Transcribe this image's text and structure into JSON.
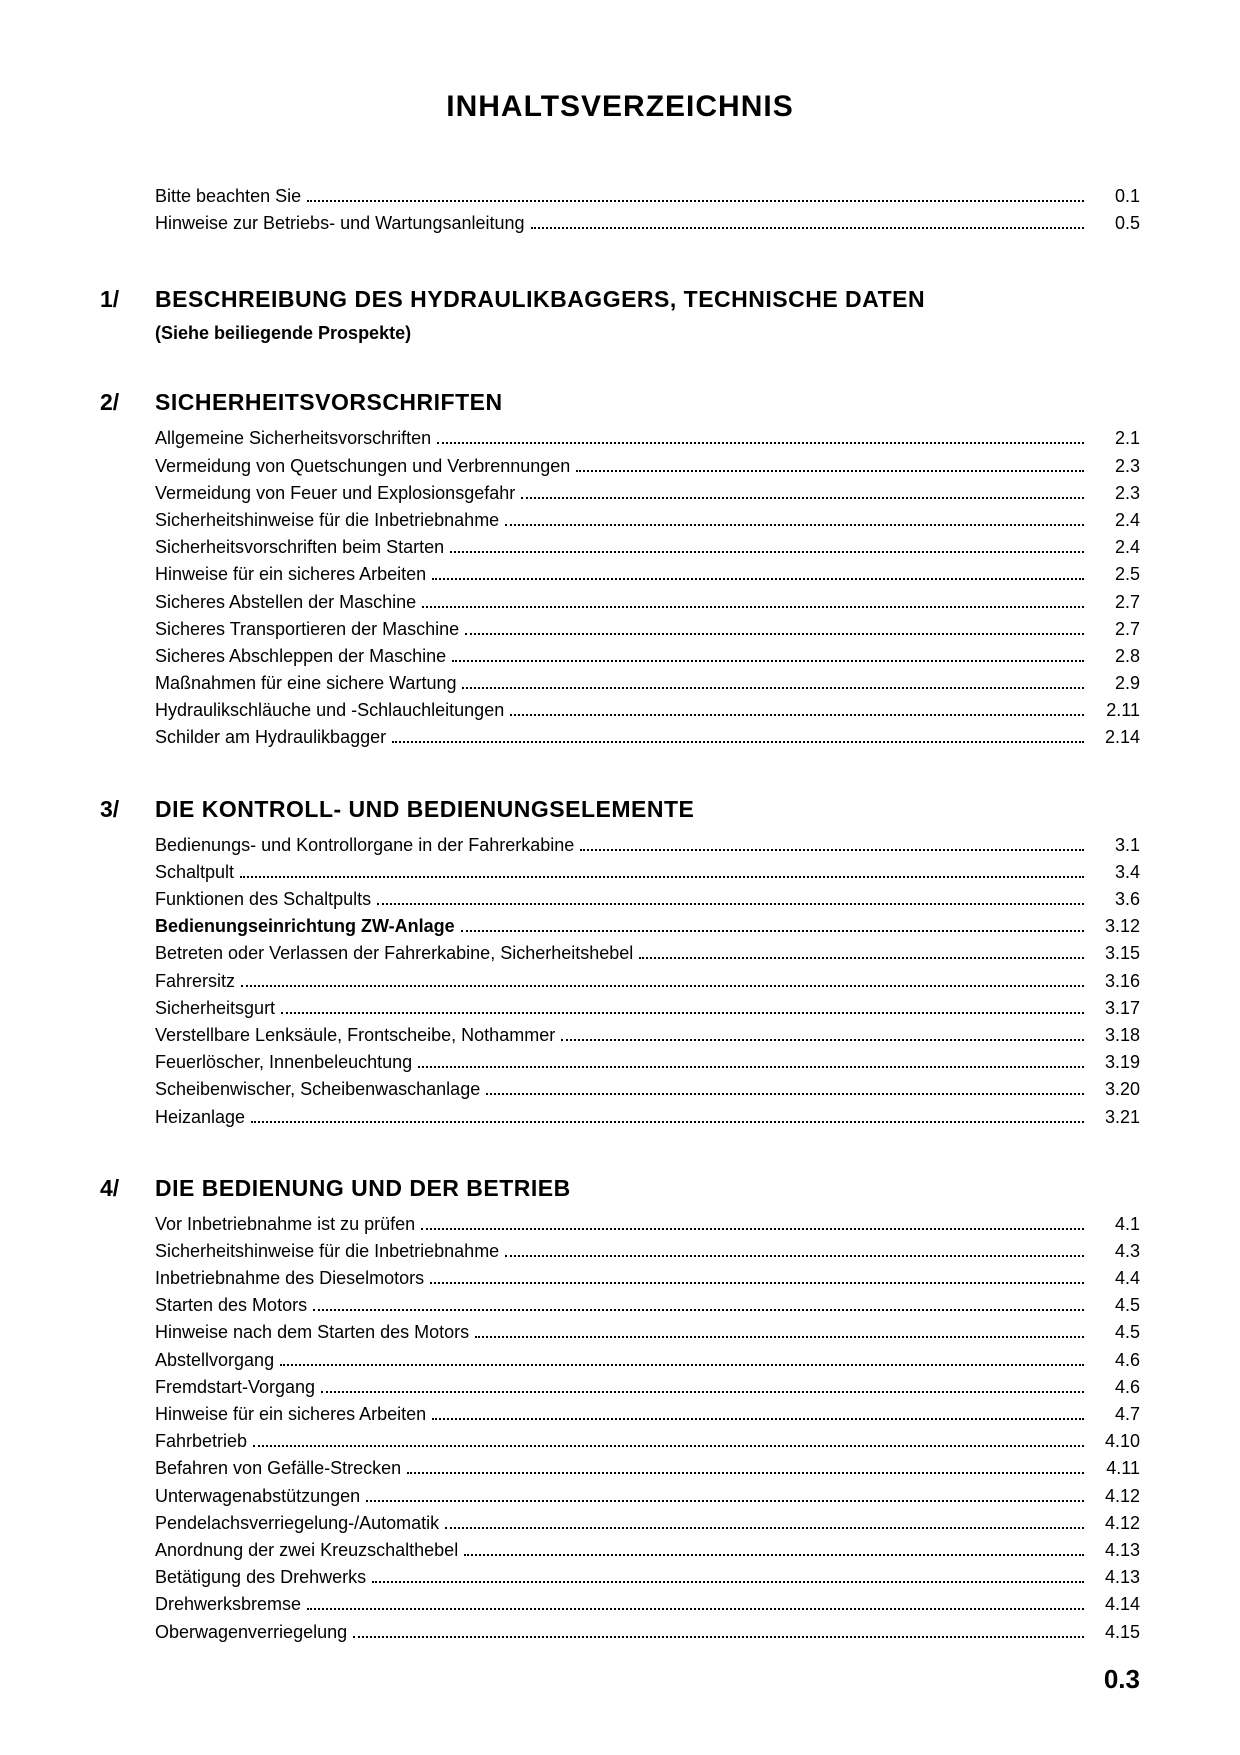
{
  "title": "INHALTSVERZEICHNIS",
  "introEntries": [
    {
      "label": "Bitte beachten Sie",
      "page": "0.1",
      "bold": false
    },
    {
      "label": "Hinweise zur Betriebs- und Wartungsanleitung",
      "page": "0.5",
      "bold": false
    }
  ],
  "sections": [
    {
      "number": "1/",
      "title": "BESCHREIBUNG DES HYDRAULIKBAGGERS, TECHNISCHE DATEN",
      "subtitle": "(Siehe beiliegende Prospekte)",
      "entries": []
    },
    {
      "number": "2/",
      "title": "SICHERHEITSVORSCHRIFTEN",
      "subtitle": "",
      "entries": [
        {
          "label": "Allgemeine Sicherheitsvorschriften",
          "page": "2.1",
          "bold": false
        },
        {
          "label": "Vermeidung von Quetschungen und Verbrennungen",
          "page": "2.3",
          "bold": false
        },
        {
          "label": "Vermeidung von Feuer und Explosionsgefahr",
          "page": "2.3",
          "bold": false
        },
        {
          "label": "Sicherheitshinweise für die Inbetriebnahme",
          "page": "2.4",
          "bold": false
        },
        {
          "label": "Sicherheitsvorschriften beim Starten",
          "page": "2.4",
          "bold": false
        },
        {
          "label": "Hinweise für ein sicheres Arbeiten",
          "page": "2.5",
          "bold": false
        },
        {
          "label": "Sicheres Abstellen der Maschine",
          "page": "2.7",
          "bold": false
        },
        {
          "label": "Sicheres Transportieren der Maschine",
          "page": "2.7",
          "bold": false
        },
        {
          "label": "Sicheres Abschleppen der Maschine",
          "page": "2.8",
          "bold": false
        },
        {
          "label": "Maßnahmen für eine sichere Wartung",
          "page": "2.9",
          "bold": false
        },
        {
          "label": "Hydraulikschläuche und -Schlauchleitungen",
          "page": "2.11",
          "bold": false
        },
        {
          "label": "Schilder am Hydraulikbagger",
          "page": "2.14",
          "bold": false
        }
      ]
    },
    {
      "number": "3/",
      "title": "DIE KONTROLL- UND BEDIENUNGSELEMENTE",
      "subtitle": "",
      "entries": [
        {
          "label": "Bedienungs- und Kontrollorgane in der Fahrerkabine",
          "page": "3.1",
          "bold": false
        },
        {
          "label": "Schaltpult",
          "page": "3.4",
          "bold": false
        },
        {
          "label": "Funktionen des Schaltpults",
          "page": "3.6",
          "bold": false
        },
        {
          "label": "Bedienungseinrichtung ZW-Anlage",
          "page": "3.12",
          "bold": true
        },
        {
          "label": "Betreten oder Verlassen der Fahrerkabine, Sicherheitshebel",
          "page": "3.15",
          "bold": false
        },
        {
          "label": "Fahrersitz",
          "page": "3.16",
          "bold": false
        },
        {
          "label": "Sicherheitsgurt",
          "page": "3.17",
          "bold": false
        },
        {
          "label": "Verstellbare Lenksäule, Frontscheibe, Nothammer",
          "page": "3.18",
          "bold": false
        },
        {
          "label": "Feuerlöscher, Innenbeleuchtung",
          "page": "3.19",
          "bold": false
        },
        {
          "label": "Scheibenwischer, Scheibenwaschanlage",
          "page": "3.20",
          "bold": false
        },
        {
          "label": "Heizanlage",
          "page": "3.21",
          "bold": false
        }
      ]
    },
    {
      "number": "4/",
      "title": "DIE BEDIENUNG UND DER BETRIEB",
      "subtitle": "",
      "entries": [
        {
          "label": "Vor Inbetriebnahme ist zu prüfen",
          "page": "4.1",
          "bold": false
        },
        {
          "label": "Sicherheitshinweise für die Inbetriebnahme",
          "page": "4.3",
          "bold": false
        },
        {
          "label": "Inbetriebnahme des Dieselmotors",
          "page": "4.4",
          "bold": false
        },
        {
          "label": "Starten des Motors",
          "page": "4.5",
          "bold": false
        },
        {
          "label": "Hinweise nach dem Starten des Motors",
          "page": "4.5",
          "bold": false
        },
        {
          "label": "Abstellvorgang",
          "page": "4.6",
          "bold": false
        },
        {
          "label": "Fremdstart-Vorgang",
          "page": "4.6",
          "bold": false
        },
        {
          "label": "Hinweise für ein sicheres Arbeiten",
          "page": "4.7",
          "bold": false
        },
        {
          "label": "Fahrbetrieb",
          "page": "4.10",
          "bold": false
        },
        {
          "label": "Befahren von Gefälle-Strecken",
          "page": "4.11",
          "bold": false
        },
        {
          "label": "Unterwagenabstützungen",
          "page": "4.12",
          "bold": false
        },
        {
          "label": "Pendelachsverriegelung-/Automatik",
          "page": "4.12",
          "bold": false
        },
        {
          "label": "Anordnung der zwei Kreuzschalthebel",
          "page": "4.13",
          "bold": false
        },
        {
          "label": "Betätigung des Drehwerks",
          "page": "4.13",
          "bold": false
        },
        {
          "label": "Drehwerksbremse",
          "page": "4.14",
          "bold": false
        },
        {
          "label": "Oberwagenverriegelung",
          "page": "4.15",
          "bold": false
        }
      ]
    }
  ],
  "footerPage": "0.3"
}
